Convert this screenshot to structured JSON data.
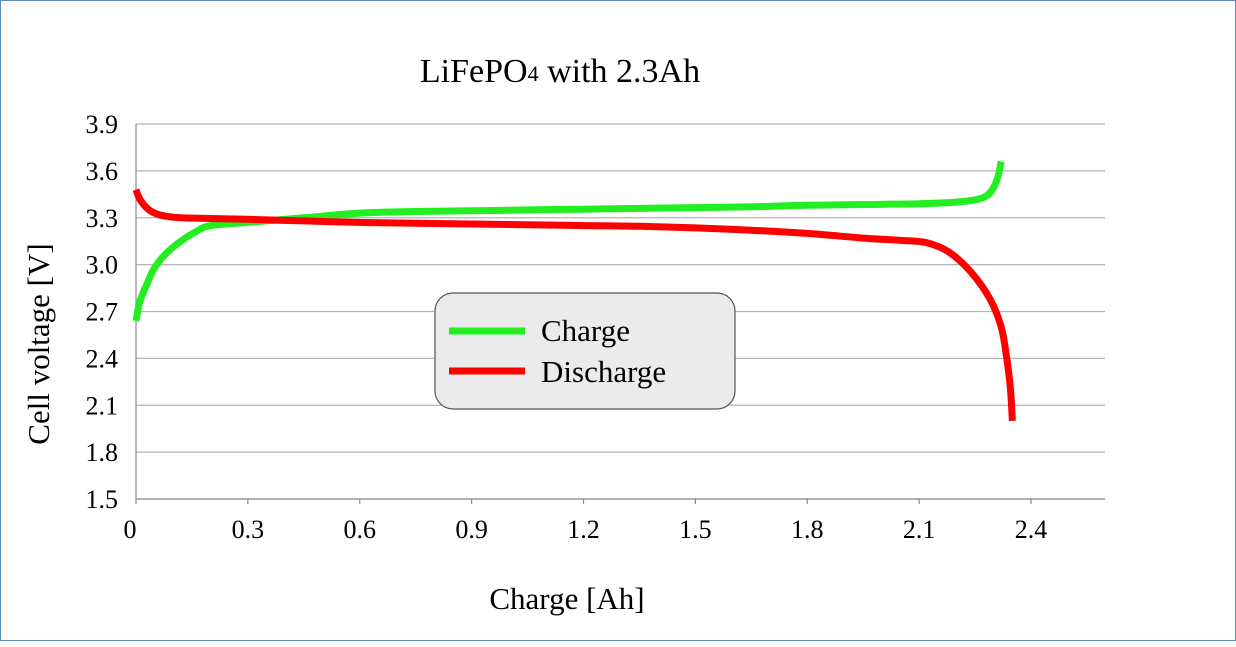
{
  "chart_data": {
    "type": "line",
    "title": "LiFePO",
    "title_subscript": "4",
    "title_suffix": " with 2.3Ah",
    "xlabel": "Charge [Ah]",
    "ylabel": "Cell voltage [V]",
    "xlim": [
      0,
      2.6
    ],
    "ylim": [
      1.5,
      3.9
    ],
    "x_ticks": [
      "0",
      "0.3",
      "0.6",
      "0.9",
      "1.2",
      "1.5",
      "1.8",
      "2.1",
      "2.4"
    ],
    "y_ticks": [
      "1.5",
      "1.8",
      "2.1",
      "2.4",
      "2.7",
      "3.0",
      "3.3",
      "3.6",
      "3.9"
    ],
    "grid": "horizontal",
    "legend_position": "center",
    "series": [
      {
        "name": "Charge",
        "color": "#22ee22",
        "x": [
          0,
          0.01,
          0.03,
          0.05,
          0.08,
          0.12,
          0.16,
          0.2,
          0.3,
          0.45,
          0.6,
          0.75,
          0.9,
          1.05,
          1.2,
          1.35,
          1.5,
          1.65,
          1.8,
          1.95,
          2.1,
          2.2,
          2.26,
          2.29,
          2.31,
          2.32
        ],
        "values": [
          2.64,
          2.76,
          2.88,
          2.98,
          3.07,
          3.15,
          3.21,
          3.25,
          3.27,
          3.3,
          3.33,
          3.34,
          3.345,
          3.35,
          3.355,
          3.36,
          3.365,
          3.37,
          3.38,
          3.385,
          3.39,
          3.4,
          3.42,
          3.46,
          3.55,
          3.66
        ]
      },
      {
        "name": "Discharge",
        "color": "#ff0000",
        "x": [
          0,
          0.01,
          0.03,
          0.05,
          0.08,
          0.12,
          0.2,
          0.3,
          0.45,
          0.6,
          0.75,
          0.9,
          1.05,
          1.2,
          1.35,
          1.5,
          1.65,
          1.8,
          1.95,
          2.05,
          2.12,
          2.18,
          2.24,
          2.29,
          2.32,
          2.335,
          2.345,
          2.35
        ],
        "values": [
          3.48,
          3.42,
          3.36,
          3.33,
          3.31,
          3.3,
          3.295,
          3.29,
          3.28,
          3.27,
          3.265,
          3.26,
          3.255,
          3.25,
          3.245,
          3.235,
          3.22,
          3.2,
          3.17,
          3.155,
          3.14,
          3.08,
          2.95,
          2.78,
          2.6,
          2.4,
          2.2,
          2.0
        ]
      }
    ]
  }
}
